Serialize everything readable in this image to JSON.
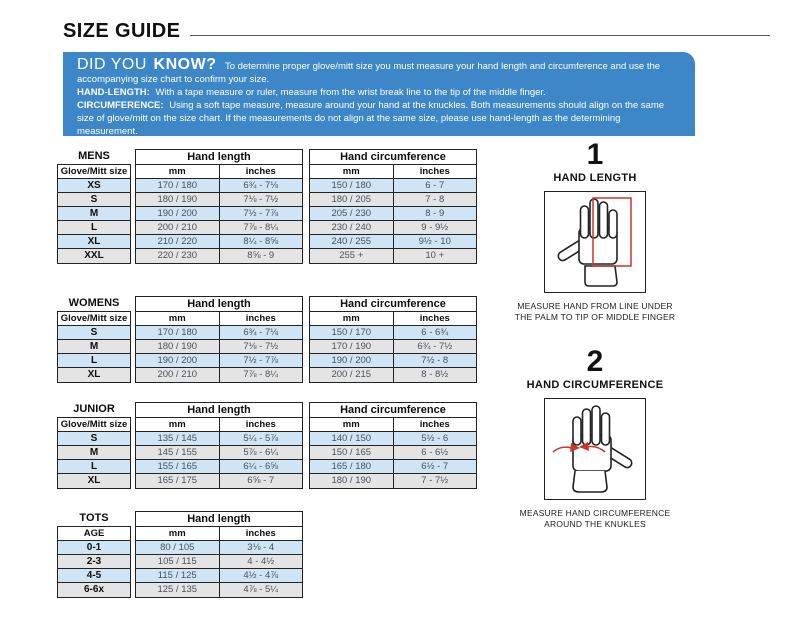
{
  "page": {
    "title": "SIZE GUIDE"
  },
  "banner": {
    "heading_light": "DID YOU",
    "heading_bold": "KNOW?",
    "intro": "To determine proper glove/mitt size you must measure your hand length and circumference and use the accompanying size chart to confirm your size.",
    "hand_length_label": "HAND-LENGTH:",
    "hand_length_text": "With a tape measure or ruler, measure from the wrist break line to the tip of the middle finger.",
    "circumference_label": "CIRCUMFERENCE:",
    "circumference_text": "Using a soft tape measure, measure around your hand at the knuckles. Both measurements should align on the same size of glove/mitt on the size chart. If the measurements do not align at the same size, please use hand-length as the determining measurement."
  },
  "tables": [
    {
      "name": "MENS",
      "size_header": "Glove/Mitt size",
      "length_header": "Hand length",
      "circ_header": "Hand circumference",
      "mm_label": "mm",
      "inches_label": "inches",
      "rows": [
        {
          "size": "XS",
          "length_mm": "170 / 180",
          "length_in": "6¾ - 7⅛",
          "circ_mm": "150 / 180",
          "circ_in": "6 - 7"
        },
        {
          "size": "S",
          "length_mm": "180 / 190",
          "length_in": "7⅛ - 7½",
          "circ_mm": "180 / 205",
          "circ_in": "7 - 8"
        },
        {
          "size": "M",
          "length_mm": "190 / 200",
          "length_in": "7½ - 7⅞",
          "circ_mm": "205 / 230",
          "circ_in": "8 - 9"
        },
        {
          "size": "L",
          "length_mm": "200 / 210",
          "length_in": "7⅞ - 8¼",
          "circ_mm": "230 / 240",
          "circ_in": "9 - 9½"
        },
        {
          "size": "XL",
          "length_mm": "210 / 220",
          "length_in": "8¼ - 8⅝",
          "circ_mm": "240 / 255",
          "circ_in": "9½ - 10"
        },
        {
          "size": "XXL",
          "length_mm": "220 / 230",
          "length_in": "8⅝ - 9",
          "circ_mm": "255 +",
          "circ_in": "10 +"
        }
      ]
    },
    {
      "name": "WOMENS",
      "size_header": "Glove/Mitt size",
      "length_header": "Hand length",
      "circ_header": "Hand circumference",
      "mm_label": "mm",
      "inches_label": "inches",
      "rows": [
        {
          "size": "S",
          "length_mm": "170 / 180",
          "length_in": "6¾ - 7⅛",
          "circ_mm": "150 / 170",
          "circ_in": "6 - 6¾"
        },
        {
          "size": "M",
          "length_mm": "180 / 190",
          "length_in": "7⅛ - 7½",
          "circ_mm": "170 / 190",
          "circ_in": "6¾ - 7½"
        },
        {
          "size": "L",
          "length_mm": "190 / 200",
          "length_in": "7½ - 7⅞",
          "circ_mm": "190 / 200",
          "circ_in": "7½ - 8"
        },
        {
          "size": "XL",
          "length_mm": "200 / 210",
          "length_in": "7⅞ - 8¼",
          "circ_mm": "200 / 215",
          "circ_in": "8 - 8½"
        }
      ]
    },
    {
      "name": "JUNIOR",
      "size_header": "Glove/Mitt size",
      "length_header": "Hand length",
      "circ_header": "Hand circumference",
      "mm_label": "mm",
      "inches_label": "inches",
      "rows": [
        {
          "size": "S",
          "length_mm": "135 / 145",
          "length_in": "5¼ - 5⅞",
          "circ_mm": "140 / 150",
          "circ_in": "5½ - 6"
        },
        {
          "size": "M",
          "length_mm": "145 / 155",
          "length_in": "5⅞ - 6¼",
          "circ_mm": "150 / 165",
          "circ_in": "6 - 6½"
        },
        {
          "size": "L",
          "length_mm": "155 / 165",
          "length_in": "6¼ - 6⅝",
          "circ_mm": "165 / 180",
          "circ_in": "6½ - 7"
        },
        {
          "size": "XL",
          "length_mm": "165 / 175",
          "length_in": "6⅝ - 7",
          "circ_mm": "180 / 190",
          "circ_in": "7 - 7½"
        }
      ]
    },
    {
      "name": "TOTS",
      "size_header": "AGE",
      "length_header": "Hand length",
      "mm_label": "mm",
      "inches_label": "inches",
      "rows": [
        {
          "size": "0-1",
          "length_mm": "80 / 105",
          "length_in": "3⅛ - 4"
        },
        {
          "size": "2-3",
          "length_mm": "105 / 115",
          "length_in": "4 - 4½"
        },
        {
          "size": "4-5",
          "length_mm": "115 / 125",
          "length_in": "4½ - 4⅞"
        },
        {
          "size": "6-6x",
          "length_mm": "125 / 135",
          "length_in": "4⅞ - 5¼"
        }
      ]
    }
  ],
  "steps": [
    {
      "number": "1",
      "title": "HAND LENGTH",
      "caption": "MEASURE HAND FROM LINE UNDER THE PALM TO TIP OF MIDDLE FINGER"
    },
    {
      "number": "2",
      "title": "HAND CIRCUMFERENCE",
      "caption": "MEASURE HAND CIRCUMFERENCE AROUND THE KNUKLES"
    }
  ],
  "colors": {
    "banner_blue": "#3d87c8",
    "row_blue": "#cfe4f4",
    "row_gray": "#e4e4e4",
    "accent_red": "#c9362e",
    "cell_text": "#44525f"
  }
}
